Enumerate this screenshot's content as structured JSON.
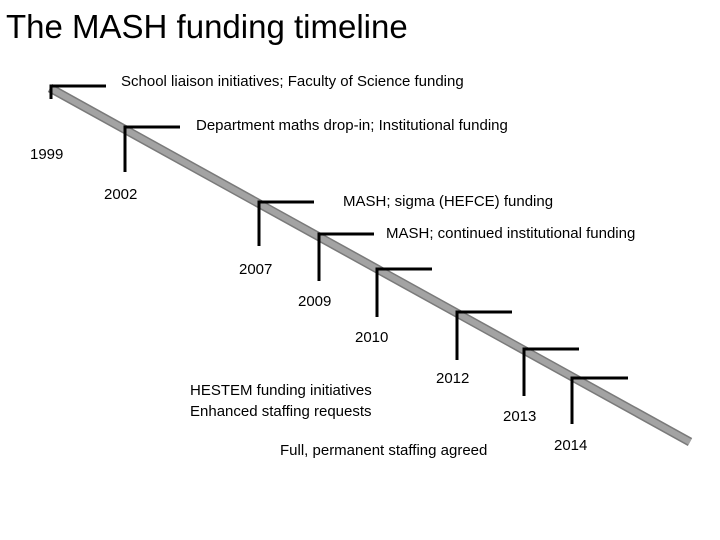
{
  "title": "The MASH funding timeline",
  "events": [
    {
      "label": "School liaison initiatives; Faculty of Science funding"
    },
    {
      "label": "Department maths drop-in; Institutional funding"
    },
    {
      "label": "MASH; sigma (HEFCE) funding"
    },
    {
      "label": "MASH;  continued institutional funding"
    }
  ],
  "years": [
    "1999",
    "2002",
    "2007",
    "2009",
    "2010",
    "2012",
    "2013",
    "2014"
  ],
  "notes": {
    "hestem": [
      "HESTEM funding initiatives",
      "Enhanced staffing requests"
    ],
    "permanent": "Full, permanent staffing agreed"
  },
  "colors": {
    "timeline_bar": "#9a9a9a",
    "timeline_edge": "#7a7a7a",
    "bracket": "#000000"
  }
}
